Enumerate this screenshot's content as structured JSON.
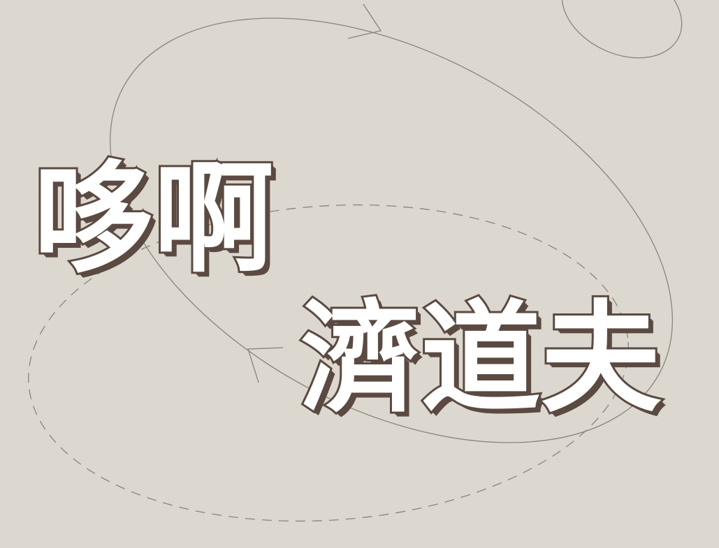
{
  "colors": {
    "background": "#dcd8cf",
    "glyph_fill": "#ffffff",
    "glyph_outline": "#5b4a42",
    "line": "#8a857c"
  },
  "title": {
    "line1": "哆啊",
    "line2": "濟道夫"
  }
}
